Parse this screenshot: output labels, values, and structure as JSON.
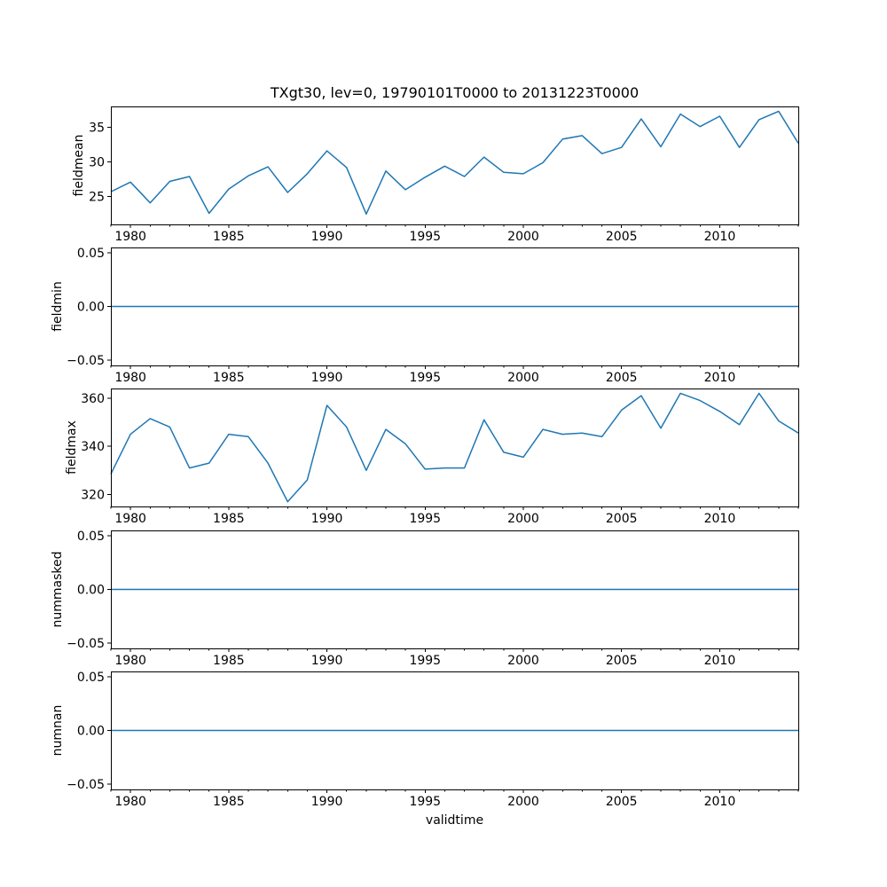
{
  "title": "TXgt30, lev=0, 19790101T0000 to 20131223T0000",
  "xlabel": "validtime",
  "colors": {
    "line": "#1f77b4",
    "axis": "#000000",
    "text": "#000000",
    "background": "#ffffff"
  },
  "chart_data": [
    {
      "type": "line",
      "name": "fieldmean",
      "ylabel": "fieldmean",
      "x": [
        1979,
        1980,
        1981,
        1982,
        1983,
        1984,
        1985,
        1986,
        1987,
        1988,
        1989,
        1990,
        1991,
        1992,
        1993,
        1994,
        1995,
        1996,
        1997,
        1998,
        1999,
        2000,
        2001,
        2002,
        2003,
        2004,
        2005,
        2006,
        2007,
        2008,
        2009,
        2010,
        2011,
        2012,
        2013,
        2014
      ],
      "values": [
        25.7,
        27.1,
        24.1,
        27.2,
        27.9,
        22.6,
        26.1,
        28.0,
        29.3,
        25.6,
        28.3,
        31.6,
        29.2,
        22.5,
        28.7,
        26.0,
        27.8,
        29.4,
        27.9,
        30.7,
        28.5,
        28.3,
        29.9,
        33.3,
        33.8,
        31.2,
        32.1,
        36.2,
        32.2,
        36.9,
        35.1,
        36.6,
        32.1,
        36.1,
        37.3,
        32.7
      ],
      "xlim": [
        1979,
        2014
      ],
      "ylim": [
        21.0,
        38.0
      ],
      "xtick_values": [
        1980,
        1985,
        1990,
        1995,
        2000,
        2005,
        2010
      ],
      "xtick_labels": [
        "1980",
        "1985",
        "1990",
        "1995",
        "2000",
        "2005",
        "2010"
      ],
      "ytick_values": [
        25,
        30,
        35
      ],
      "ytick_labels": [
        "25",
        "30",
        "35"
      ],
      "grid": false,
      "legend": null
    },
    {
      "type": "line",
      "name": "fieldmin",
      "ylabel": "fieldmin",
      "x": [
        1979,
        1980,
        1981,
        1982,
        1983,
        1984,
        1985,
        1986,
        1987,
        1988,
        1989,
        1990,
        1991,
        1992,
        1993,
        1994,
        1995,
        1996,
        1997,
        1998,
        1999,
        2000,
        2001,
        2002,
        2003,
        2004,
        2005,
        2006,
        2007,
        2008,
        2009,
        2010,
        2011,
        2012,
        2013,
        2014
      ],
      "values": [
        0,
        0,
        0,
        0,
        0,
        0,
        0,
        0,
        0,
        0,
        0,
        0,
        0,
        0,
        0,
        0,
        0,
        0,
        0,
        0,
        0,
        0,
        0,
        0,
        0,
        0,
        0,
        0,
        0,
        0,
        0,
        0,
        0,
        0,
        0,
        0
      ],
      "xlim": [
        1979,
        2014
      ],
      "ylim": [
        -0.055,
        0.055
      ],
      "xtick_values": [
        1980,
        1985,
        1990,
        1995,
        2000,
        2005,
        2010
      ],
      "xtick_labels": [
        "1980",
        "1985",
        "1990",
        "1995",
        "2000",
        "2005",
        "2010"
      ],
      "ytick_values": [
        0.05,
        0.0,
        -0.05
      ],
      "ytick_labels": [
        "0.05",
        "0.00",
        "−0.05"
      ],
      "grid": false,
      "legend": null
    },
    {
      "type": "line",
      "name": "fieldmax",
      "ylabel": "fieldmax",
      "x": [
        1979,
        1980,
        1981,
        1982,
        1983,
        1984,
        1985,
        1986,
        1987,
        1988,
        1989,
        1990,
        1991,
        1992,
        1993,
        1994,
        1995,
        1996,
        1997,
        1998,
        1999,
        2000,
        2001,
        2002,
        2003,
        2004,
        2005,
        2006,
        2007,
        2008,
        2009,
        2010,
        2011,
        2012,
        2013,
        2014
      ],
      "values": [
        328.5,
        345,
        351.5,
        348,
        331,
        333,
        345,
        344,
        333,
        317,
        326,
        357,
        348,
        330,
        347,
        341,
        330.5,
        331,
        331,
        351,
        337.5,
        335.5,
        347,
        345,
        345.5,
        344,
        355,
        361,
        347.5,
        362,
        359,
        354.5,
        349,
        362,
        350.5,
        345.5
      ],
      "xlim": [
        1979,
        2014
      ],
      "ylim": [
        315,
        364
      ],
      "xtick_values": [
        1980,
        1985,
        1990,
        1995,
        2000,
        2005,
        2010
      ],
      "xtick_labels": [
        "1980",
        "1985",
        "1990",
        "1995",
        "2000",
        "2005",
        "2010"
      ],
      "ytick_values": [
        320,
        340,
        360
      ],
      "ytick_labels": [
        "320",
        "340",
        "360"
      ],
      "grid": false,
      "legend": null
    },
    {
      "type": "line",
      "name": "nummasked",
      "ylabel": "nummasked",
      "x": [
        1979,
        1980,
        1981,
        1982,
        1983,
        1984,
        1985,
        1986,
        1987,
        1988,
        1989,
        1990,
        1991,
        1992,
        1993,
        1994,
        1995,
        1996,
        1997,
        1998,
        1999,
        2000,
        2001,
        2002,
        2003,
        2004,
        2005,
        2006,
        2007,
        2008,
        2009,
        2010,
        2011,
        2012,
        2013,
        2014
      ],
      "values": [
        0,
        0,
        0,
        0,
        0,
        0,
        0,
        0,
        0,
        0,
        0,
        0,
        0,
        0,
        0,
        0,
        0,
        0,
        0,
        0,
        0,
        0,
        0,
        0,
        0,
        0,
        0,
        0,
        0,
        0,
        0,
        0,
        0,
        0,
        0,
        0
      ],
      "xlim": [
        1979,
        2014
      ],
      "ylim": [
        -0.055,
        0.055
      ],
      "xtick_values": [
        1980,
        1985,
        1990,
        1995,
        2000,
        2005,
        2010
      ],
      "xtick_labels": [
        "1980",
        "1985",
        "1990",
        "1995",
        "2000",
        "2005",
        "2010"
      ],
      "ytick_values": [
        0.05,
        0.0,
        -0.05
      ],
      "ytick_labels": [
        "0.05",
        "0.00",
        "−0.05"
      ],
      "grid": false,
      "legend": null
    },
    {
      "type": "line",
      "name": "numnan",
      "ylabel": "numnan",
      "x": [
        1979,
        1980,
        1981,
        1982,
        1983,
        1984,
        1985,
        1986,
        1987,
        1988,
        1989,
        1990,
        1991,
        1992,
        1993,
        1994,
        1995,
        1996,
        1997,
        1998,
        1999,
        2000,
        2001,
        2002,
        2003,
        2004,
        2005,
        2006,
        2007,
        2008,
        2009,
        2010,
        2011,
        2012,
        2013,
        2014
      ],
      "values": [
        0,
        0,
        0,
        0,
        0,
        0,
        0,
        0,
        0,
        0,
        0,
        0,
        0,
        0,
        0,
        0,
        0,
        0,
        0,
        0,
        0,
        0,
        0,
        0,
        0,
        0,
        0,
        0,
        0,
        0,
        0,
        0,
        0,
        0,
        0,
        0
      ],
      "xlim": [
        1979,
        2014
      ],
      "ylim": [
        -0.055,
        0.055
      ],
      "xtick_values": [
        1980,
        1985,
        1990,
        1995,
        2000,
        2005,
        2010
      ],
      "xtick_labels": [
        "1980",
        "1985",
        "1990",
        "1995",
        "2000",
        "2005",
        "2010"
      ],
      "ytick_values": [
        0.05,
        0.0,
        -0.05
      ],
      "ytick_labels": [
        "0.05",
        "0.00",
        "−0.05"
      ],
      "grid": false,
      "legend": null
    }
  ]
}
